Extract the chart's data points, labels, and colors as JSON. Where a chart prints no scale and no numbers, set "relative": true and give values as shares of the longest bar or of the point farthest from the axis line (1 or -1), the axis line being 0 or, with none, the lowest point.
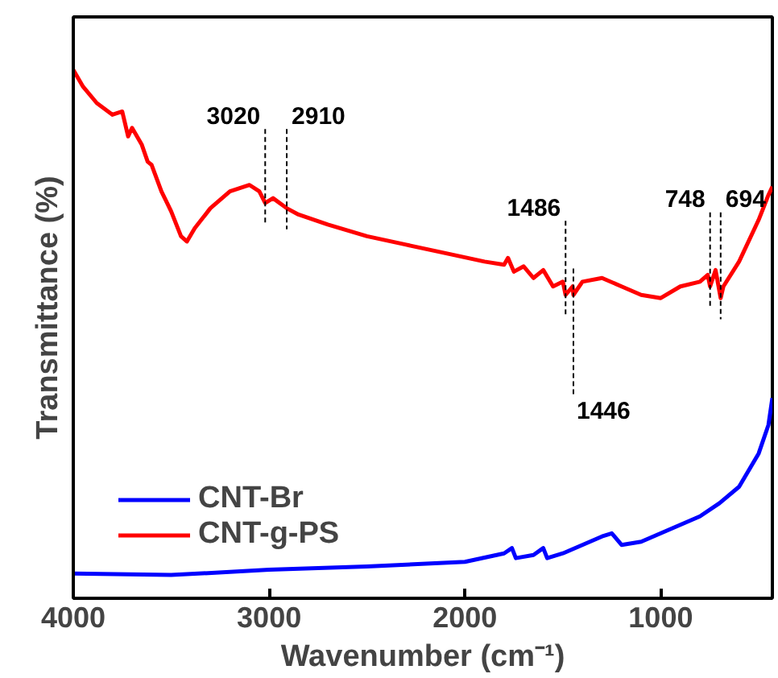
{
  "chart_data": {
    "type": "line",
    "relative": true,
    "xlabel": "Wavenumber (cm⁻¹)",
    "ylabel": "Transmittance (%)",
    "xlim": [
      4000,
      430
    ],
    "xticks": [
      4000,
      3000,
      2000,
      1000
    ],
    "legend": "bottom left",
    "grid": false,
    "line_style": "solid",
    "marker": "none",
    "series": [
      {
        "name": "CNT-Br",
        "color": "#0000ff",
        "x": [
          4000,
          3500,
          3000,
          2500,
          2000,
          1800,
          1760,
          1740,
          1650,
          1600,
          1580,
          1500,
          1300,
          1250,
          1200,
          1100,
          1000,
          800,
          700,
          600,
          500,
          450,
          430
        ],
        "values": [
          0.047,
          0.044,
          0.054,
          0.06,
          0.069,
          0.085,
          0.095,
          0.076,
          0.082,
          0.095,
          0.076,
          0.085,
          0.117,
          0.123,
          0.101,
          0.107,
          0.123,
          0.155,
          0.18,
          0.211,
          0.274,
          0.328,
          0.379
        ]
      },
      {
        "name": "CNT-g-PS",
        "color": "#ff0000",
        "x": [
          4000,
          3950,
          3880,
          3800,
          3750,
          3720,
          3700,
          3650,
          3620,
          3600,
          3550,
          3500,
          3450,
          3420,
          3380,
          3300,
          3200,
          3100,
          3050,
          3020,
          2980,
          2910,
          2850,
          2700,
          2500,
          2300,
          2100,
          1900,
          1800,
          1780,
          1750,
          1700,
          1650,
          1600,
          1550,
          1500,
          1486,
          1450,
          1446,
          1400,
          1300,
          1200,
          1100,
          1000,
          900,
          800,
          760,
          748,
          720,
          694,
          680,
          600,
          500,
          450,
          430
        ],
        "values": [
          1.0,
          0.968,
          0.937,
          0.915,
          0.921,
          0.874,
          0.89,
          0.858,
          0.826,
          0.82,
          0.77,
          0.732,
          0.685,
          0.675,
          0.7,
          0.738,
          0.77,
          0.782,
          0.77,
          0.748,
          0.757,
          0.738,
          0.726,
          0.707,
          0.685,
          0.669,
          0.653,
          0.637,
          0.631,
          0.644,
          0.618,
          0.628,
          0.606,
          0.621,
          0.59,
          0.599,
          0.574,
          0.59,
          0.574,
          0.599,
          0.606,
          0.59,
          0.574,
          0.568,
          0.59,
          0.599,
          0.612,
          0.59,
          0.621,
          0.568,
          0.59,
          0.637,
          0.716,
          0.763,
          0.779
        ]
      }
    ],
    "ref_lines": [
      {
        "axis": "x",
        "value": 3020,
        "label": "3020",
        "line_style": "dashed"
      },
      {
        "axis": "x",
        "value": 2910,
        "label": "2910",
        "line_style": "dashed"
      },
      {
        "axis": "x",
        "value": 1486,
        "label": "1486",
        "line_style": "dashed"
      },
      {
        "axis": "x",
        "value": 1446,
        "label": "1446",
        "line_style": "dashed"
      },
      {
        "axis": "x",
        "value": 748,
        "label": "748",
        "line_style": "dashed"
      },
      {
        "axis": "x",
        "value": 694,
        "label": "694",
        "line_style": "dashed"
      }
    ]
  }
}
